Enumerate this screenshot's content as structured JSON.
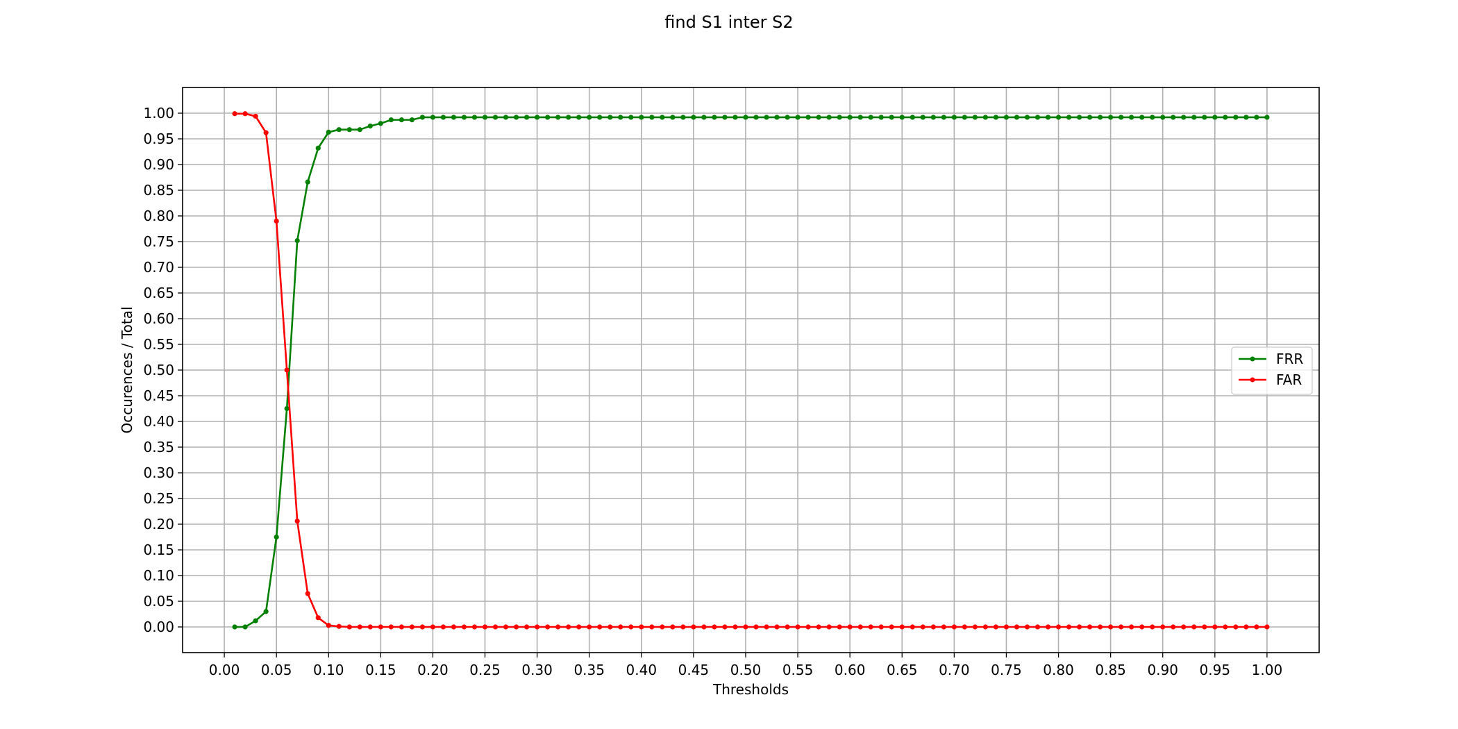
{
  "chart_data": {
    "type": "line",
    "title": "find S1 inter S2",
    "xlabel": "Thresholds",
    "ylabel": "Occurences / Total",
    "xlim": [
      -0.04,
      1.05
    ],
    "ylim": [
      -0.05,
      1.05
    ],
    "xticks": [
      "0.00",
      "0.05",
      "0.10",
      "0.15",
      "0.20",
      "0.25",
      "0.30",
      "0.35",
      "0.40",
      "0.45",
      "0.50",
      "0.55",
      "0.60",
      "0.65",
      "0.70",
      "0.75",
      "0.80",
      "0.85",
      "0.90",
      "0.95",
      "1.00"
    ],
    "yticks": [
      "0.00",
      "0.05",
      "0.10",
      "0.15",
      "0.20",
      "0.25",
      "0.30",
      "0.35",
      "0.40",
      "0.45",
      "0.50",
      "0.55",
      "0.60",
      "0.65",
      "0.70",
      "0.75",
      "0.80",
      "0.85",
      "0.90",
      "0.95",
      "1.00"
    ],
    "grid": true,
    "legend_position": "center-right",
    "series": [
      {
        "name": "FRR",
        "color": "#008000",
        "marker": "circle",
        "x": [
          0.01,
          0.02,
          0.03,
          0.04,
          0.05,
          0.06,
          0.07,
          0.08,
          0.09,
          0.1,
          0.11,
          0.12,
          0.13,
          0.14,
          0.15,
          0.16,
          0.17,
          0.18,
          0.19,
          0.2,
          0.21,
          0.22,
          0.23,
          0.24,
          0.25,
          0.26,
          0.27,
          0.28,
          0.29,
          0.3,
          0.31,
          0.32,
          0.33,
          0.34,
          0.35,
          0.36,
          0.37,
          0.38,
          0.39,
          0.4,
          0.41,
          0.42,
          0.43,
          0.44,
          0.45,
          0.46,
          0.47,
          0.48,
          0.49,
          0.5,
          0.51,
          0.52,
          0.53,
          0.54,
          0.55,
          0.56,
          0.57,
          0.58,
          0.59,
          0.6,
          0.61,
          0.62,
          0.63,
          0.64,
          0.65,
          0.66,
          0.67,
          0.68,
          0.69,
          0.7,
          0.71,
          0.72,
          0.73,
          0.74,
          0.75,
          0.76,
          0.77,
          0.78,
          0.79,
          0.8,
          0.81,
          0.82,
          0.83,
          0.84,
          0.85,
          0.86,
          0.87,
          0.88,
          0.89,
          0.9,
          0.91,
          0.92,
          0.93,
          0.94,
          0.95,
          0.96,
          0.97,
          0.98,
          0.99,
          1.0
        ],
        "y": [
          0.0,
          0.0,
          0.012,
          0.03,
          0.175,
          0.425,
          0.752,
          0.866,
          0.932,
          0.963,
          0.968,
          0.968,
          0.968,
          0.975,
          0.98,
          0.987,
          0.987,
          0.987,
          0.992,
          0.992,
          0.992,
          0.992,
          0.992,
          0.992,
          0.992,
          0.992,
          0.992,
          0.992,
          0.992,
          0.992,
          0.992,
          0.992,
          0.992,
          0.992,
          0.992,
          0.992,
          0.992,
          0.992,
          0.992,
          0.992,
          0.992,
          0.992,
          0.992,
          0.992,
          0.992,
          0.992,
          0.992,
          0.992,
          0.992,
          0.992,
          0.992,
          0.992,
          0.992,
          0.992,
          0.992,
          0.992,
          0.992,
          0.992,
          0.992,
          0.992,
          0.992,
          0.992,
          0.992,
          0.992,
          0.992,
          0.992,
          0.992,
          0.992,
          0.992,
          0.992,
          0.992,
          0.992,
          0.992,
          0.992,
          0.992,
          0.992,
          0.992,
          0.992,
          0.992,
          0.992,
          0.992,
          0.992,
          0.992,
          0.992,
          0.992,
          0.992,
          0.992,
          0.992,
          0.992,
          0.992,
          0.992,
          0.992,
          0.992,
          0.992,
          0.992,
          0.992,
          0.992,
          0.992,
          0.992,
          0.992
        ]
      },
      {
        "name": "FAR",
        "color": "#ff0000",
        "marker": "circle",
        "x": [
          0.01,
          0.02,
          0.03,
          0.04,
          0.05,
          0.06,
          0.07,
          0.08,
          0.09,
          0.1,
          0.11,
          0.12,
          0.13,
          0.14,
          0.15,
          0.16,
          0.17,
          0.18,
          0.19,
          0.2,
          0.21,
          0.22,
          0.23,
          0.24,
          0.25,
          0.26,
          0.27,
          0.28,
          0.29,
          0.3,
          0.31,
          0.32,
          0.33,
          0.34,
          0.35,
          0.36,
          0.37,
          0.38,
          0.39,
          0.4,
          0.41,
          0.42,
          0.43,
          0.44,
          0.45,
          0.46,
          0.47,
          0.48,
          0.49,
          0.5,
          0.51,
          0.52,
          0.53,
          0.54,
          0.55,
          0.56,
          0.57,
          0.58,
          0.59,
          0.6,
          0.61,
          0.62,
          0.63,
          0.64,
          0.65,
          0.66,
          0.67,
          0.68,
          0.69,
          0.7,
          0.71,
          0.72,
          0.73,
          0.74,
          0.75,
          0.76,
          0.77,
          0.78,
          0.79,
          0.8,
          0.81,
          0.82,
          0.83,
          0.84,
          0.85,
          0.86,
          0.87,
          0.88,
          0.89,
          0.9,
          0.91,
          0.92,
          0.93,
          0.94,
          0.95,
          0.96,
          0.97,
          0.98,
          0.99,
          1.0
        ],
        "y": [
          0.999,
          0.999,
          0.994,
          0.962,
          0.79,
          0.5,
          0.206,
          0.065,
          0.018,
          0.003,
          0.001,
          0.0,
          0.0,
          0.0,
          0.0,
          0.0,
          0.0,
          0.0,
          0.0,
          0.0,
          0.0,
          0.0,
          0.0,
          0.0,
          0.0,
          0.0,
          0.0,
          0.0,
          0.0,
          0.0,
          0.0,
          0.0,
          0.0,
          0.0,
          0.0,
          0.0,
          0.0,
          0.0,
          0.0,
          0.0,
          0.0,
          0.0,
          0.0,
          0.0,
          0.0,
          0.0,
          0.0,
          0.0,
          0.0,
          0.0,
          0.0,
          0.0,
          0.0,
          0.0,
          0.0,
          0.0,
          0.0,
          0.0,
          0.0,
          0.0,
          0.0,
          0.0,
          0.0,
          0.0,
          0.0,
          0.0,
          0.0,
          0.0,
          0.0,
          0.0,
          0.0,
          0.0,
          0.0,
          0.0,
          0.0,
          0.0,
          0.0,
          0.0,
          0.0,
          0.0,
          0.0,
          0.0,
          0.0,
          0.0,
          0.0,
          0.0,
          0.0,
          0.0,
          0.0,
          0.0,
          0.0,
          0.0,
          0.0,
          0.0,
          0.0,
          0.0,
          0.0,
          0.0,
          0.0,
          0.0
        ]
      }
    ]
  }
}
